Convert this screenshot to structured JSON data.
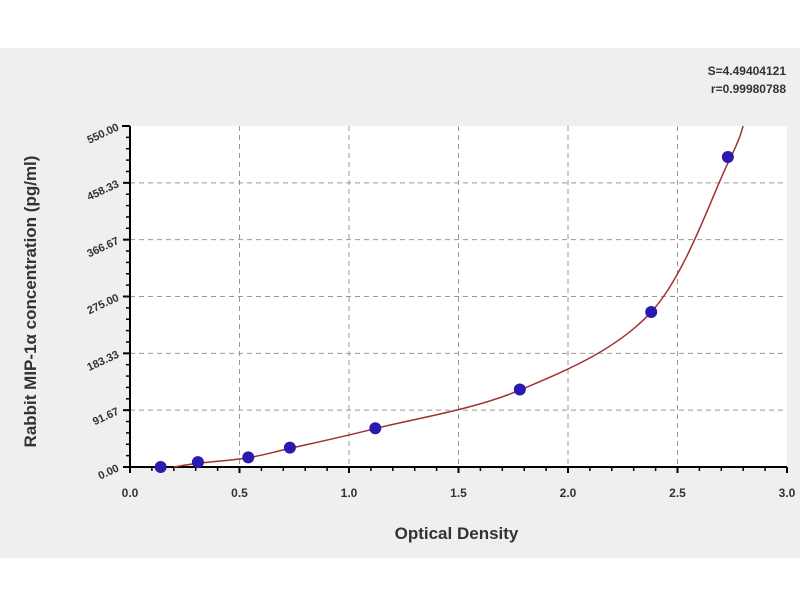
{
  "chart_data": {
    "type": "scatter",
    "title": "",
    "xlabel": "Optical Density",
    "ylabel": "Rabbit MIP-1α concentration (pg/ml)",
    "xlim": [
      0,
      3.0
    ],
    "ylim": [
      0,
      550
    ],
    "xticks": [
      "0.0",
      "0.5",
      "1.0",
      "1.5",
      "2.0",
      "2.5",
      "3.0"
    ],
    "xtick_values": [
      0,
      0.5,
      1,
      1.5,
      2,
      2.5,
      3
    ],
    "yticks": [
      "0.00",
      "91.67",
      "183.33",
      "275.00",
      "366.67",
      "458.33",
      "550.00"
    ],
    "ytick_values": [
      0,
      91.67,
      183.33,
      275,
      366.67,
      458.33,
      550
    ],
    "grid": true,
    "points": {
      "x": [
        0.14,
        0.31,
        0.54,
        0.73,
        1.12,
        1.78,
        2.38,
        2.73
      ],
      "y": [
        0,
        7.8,
        15.6,
        31.25,
        62.5,
        125,
        250,
        500
      ]
    },
    "fit_curve": {
      "x": [
        0.2,
        0.31,
        0.54,
        0.73,
        1.12,
        1.78,
        2.38,
        2.73,
        2.8
      ],
      "y": [
        0,
        6,
        15,
        30,
        62,
        124,
        250,
        490,
        550
      ]
    },
    "annotations": [
      "S=4.49404121",
      "r=0.99980788"
    ],
    "colors": {
      "points": "#2a1ab0",
      "curve": "#a03030",
      "grid": "#999999"
    }
  }
}
